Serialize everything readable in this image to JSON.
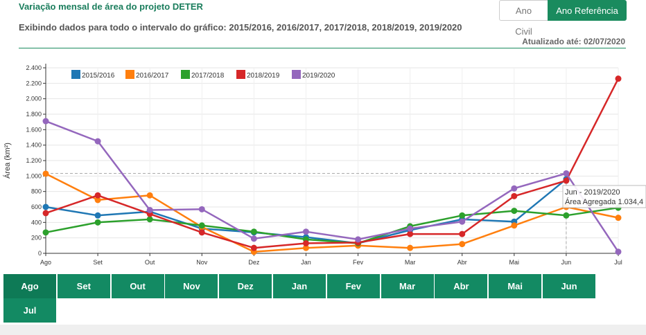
{
  "header": {
    "title": "Variação mensal de área do projeto DETER",
    "subtitle": "Exibindo dados para todo o intervalo do gráfico: 2015/2016, 2016/2017, 2017/2018, 2018/2019, 2019/2020",
    "updated": "Atualizado até: 02/07/2020"
  },
  "toggle": {
    "civil_label": "Ano Civil",
    "ref_label": "Ano Referência",
    "selected": "ref"
  },
  "tooltip": {
    "line1": "Jun - 2019/2020",
    "line2": "Área Agregada 1.034,4"
  },
  "month_buttons": [
    "Ago",
    "Set",
    "Out",
    "Nov",
    "Dez",
    "Jan",
    "Fev",
    "Mar",
    "Abr",
    "Mai",
    "Jun",
    "Jul"
  ],
  "chart_data": {
    "type": "line",
    "title": "",
    "xlabel": "",
    "ylabel": "Área (km²)",
    "ylim": [
      0,
      2400
    ],
    "yticks": [
      0,
      200,
      400,
      600,
      800,
      1000,
      1200,
      1400,
      1600,
      1800,
      2000,
      2200,
      2400
    ],
    "ytick_labels": [
      "0",
      "200",
      "400",
      "600",
      "800",
      "1.000",
      "1.200",
      "1.400",
      "1.600",
      "1.800",
      "2.000",
      "2.200",
      "2.400"
    ],
    "categories": [
      "Ago",
      "Set",
      "Out",
      "Nov",
      "Dez",
      "Jan",
      "Fev",
      "Mar",
      "Abr",
      "Mai",
      "Jun",
      "Jul"
    ],
    "grid": true,
    "legend_position": "top-left",
    "reference_line": 1034.4,
    "series": [
      {
        "name": "2015/2016",
        "color": "#1f77b4",
        "values": [
          600,
          490,
          540,
          320,
          270,
          210,
          130,
          300,
          440,
          410,
          960,
          null
        ]
      },
      {
        "name": "2016/2017",
        "color": "#ff7f0e",
        "values": [
          1030,
          690,
          750,
          340,
          20,
          70,
          100,
          70,
          120,
          360,
          600,
          460
        ]
      },
      {
        "name": "2017/2018",
        "color": "#2ca02c",
        "values": [
          270,
          400,
          440,
          360,
          280,
          180,
          130,
          350,
          490,
          550,
          490,
          590
        ]
      },
      {
        "name": "2018/2019",
        "color": "#d62728",
        "values": [
          520,
          750,
          510,
          270,
          70,
          130,
          140,
          250,
          250,
          740,
          940,
          2260
        ]
      },
      {
        "name": "2019/2020",
        "color": "#9467bd",
        "values": [
          1710,
          1450,
          560,
          570,
          190,
          280,
          180,
          320,
          410,
          840,
          1034.4,
          20
        ]
      }
    ]
  }
}
